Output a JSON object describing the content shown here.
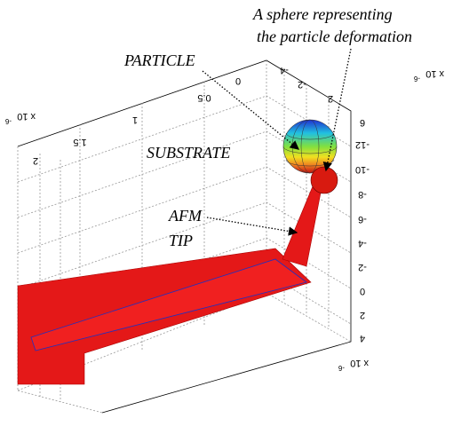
{
  "annotations": {
    "sphere_line1": "A sphere representing",
    "sphere_line2": "the particle deformation",
    "particle": "PARTICLE",
    "substrate": "SUBSTRATE",
    "afm": "AFM",
    "tip": "TIP"
  },
  "axes": {
    "top_ticks": [
      "2",
      "1.5",
      "1",
      "0.5",
      "0",
      "-4",
      "-2",
      "2"
    ],
    "right_ticks": [
      "6",
      "-12",
      "-10",
      "-8",
      "-6",
      "-4",
      "-2",
      "0",
      "2",
      "4"
    ],
    "exponents": [
      {
        "base": "x 10",
        "power": "-6"
      },
      {
        "base": "x 10",
        "power": "-6"
      },
      {
        "base": "x 10",
        "power": "-6"
      }
    ]
  }
}
